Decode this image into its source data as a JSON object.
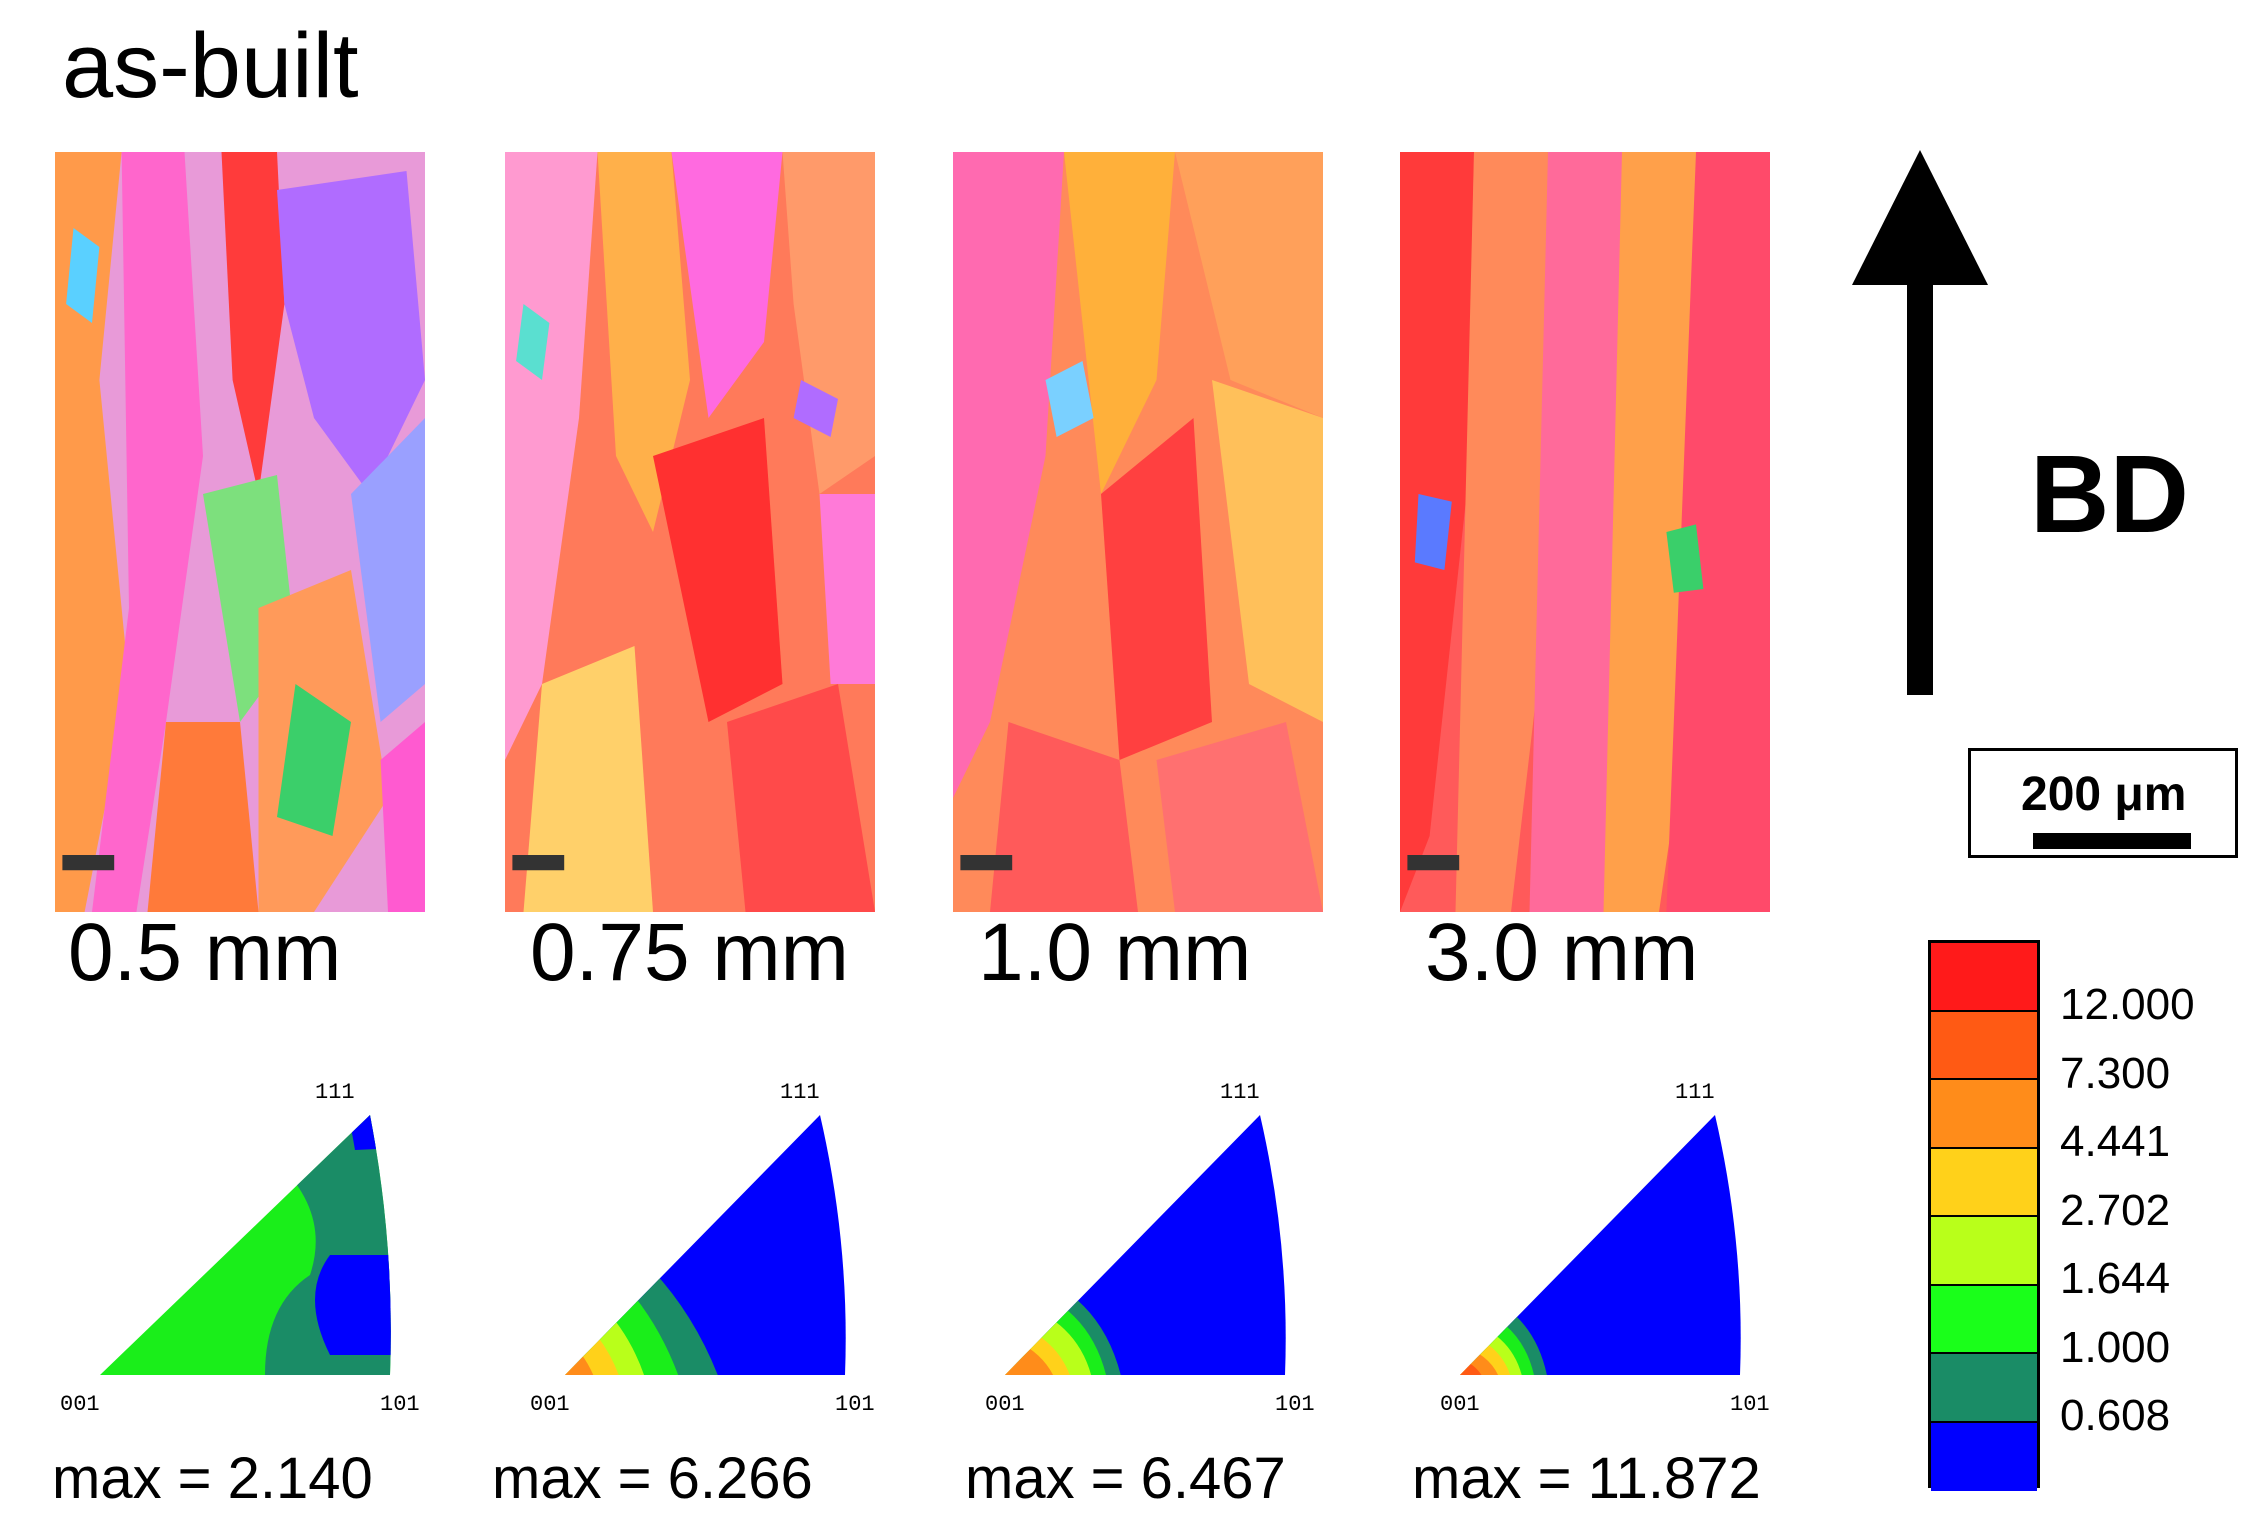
{
  "title": "as-built",
  "samples": [
    {
      "size": "0.5 mm",
      "max": "max = 2.140"
    },
    {
      "size": "0.75 mm",
      "max": "max = 6.266"
    },
    {
      "size": "1.0 mm",
      "max": "max = 6.467"
    },
    {
      "size": "3.0 mm",
      "max": "max = 11.872"
    }
  ],
  "ipf_corners": {
    "top": "111",
    "left": "001",
    "right": "101"
  },
  "direction": {
    "label": "BD",
    "icon": "up-arrow-icon"
  },
  "scale_bar": {
    "label": "200 μm"
  },
  "legend": {
    "colors": [
      "#ff1a1a",
      "#ff5a14",
      "#ff8c1a",
      "#ffd11a",
      "#b9ff1a",
      "#1aff1a",
      "#1a8c66",
      "#0000ff"
    ],
    "values": [
      "12.000",
      "7.300",
      "4.441",
      "2.702",
      "1.644",
      "1.000",
      "0.608"
    ]
  }
}
